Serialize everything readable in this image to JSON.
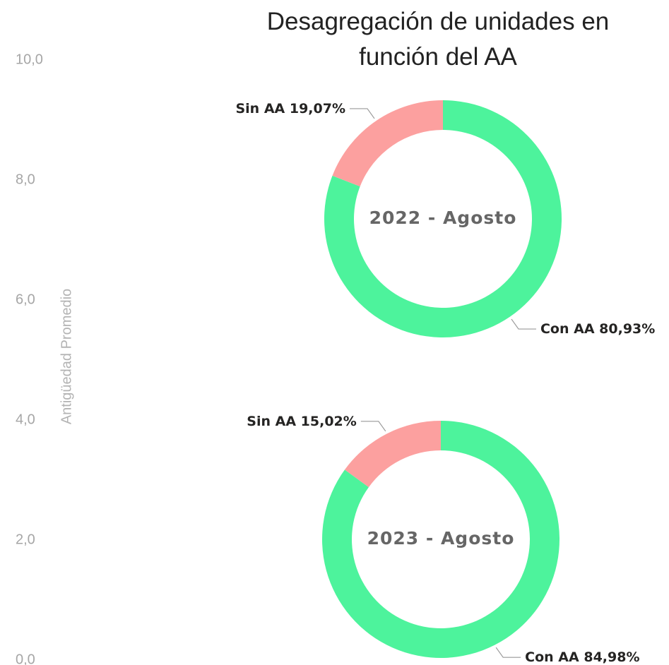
{
  "title": "Desagregación de unidades en función del AA",
  "chart_data": [
    {
      "type": "axis",
      "ylabel": "Antigüedad Promedio",
      "ylim": [
        0,
        10
      ],
      "yticks": [
        {
          "value": 0,
          "label": "0,0"
        },
        {
          "value": 2,
          "label": "2,0"
        },
        {
          "value": 4,
          "label": "4,0"
        },
        {
          "value": 6,
          "label": "6,0"
        },
        {
          "value": 8,
          "label": "8,0"
        },
        {
          "value": 10,
          "label": "10,0"
        }
      ]
    },
    {
      "type": "donut",
      "title": "2022 - Agosto",
      "categories": [
        "Con AA",
        "Sin AA"
      ],
      "values": [
        80.93,
        19.07
      ],
      "value_labels": [
        "80,93%",
        "19,07%"
      ],
      "colors": [
        "#4df39c",
        "#fca09f"
      ]
    },
    {
      "type": "donut",
      "title": "2023 - Agosto",
      "categories": [
        "Con AA",
        "Sin AA"
      ],
      "values": [
        84.98,
        15.02
      ],
      "value_labels": [
        "84,98%",
        "15,02%"
      ],
      "colors": [
        "#4df39c",
        "#fca09f"
      ]
    }
  ]
}
